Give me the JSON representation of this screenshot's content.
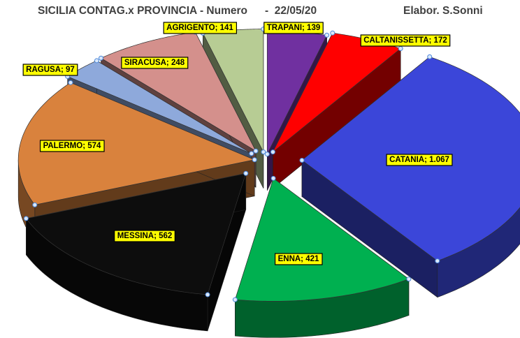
{
  "header": {
    "title": "SICILIA CONTAG.x PROVINCIA - Numero",
    "date": "-  22/05/20",
    "author": "Elabor. S.Sonni"
  },
  "chart_data": {
    "type": "pie",
    "style": "3d-exploded",
    "title": "SICILIA CONTAG.x PROVINCIA - Numero",
    "slices": [
      {
        "name": "TRAPANI",
        "value": 139,
        "label": "TRAPANI; 139",
        "color": "#7030A0"
      },
      {
        "name": "CALTANISSETTA",
        "value": 172,
        "label": "CALTANISSETTA; 172",
        "color": "#FF0000"
      },
      {
        "name": "CATANIA",
        "value": 1067,
        "label": "CATANIA; 1.067",
        "color": "#3B46D9"
      },
      {
        "name": "ENNA",
        "value": 421,
        "label": "ENNA; 421",
        "color": "#00B050"
      },
      {
        "name": "MESSINA",
        "value": 562,
        "label": "MESSINA; 562",
        "color": "#0D0D0D"
      },
      {
        "name": "PALERMO",
        "value": 574,
        "label": "PALERMO; 574",
        "color": "#D9823D"
      },
      {
        "name": "RAGUSA",
        "value": 97,
        "label": "RAGUSA; 97",
        "color": "#8EA9DB"
      },
      {
        "name": "SIRACUSA",
        "value": 248,
        "label": "SIRACUSA; 248",
        "color": "#D4908C"
      },
      {
        "name": "AGRIGENTO",
        "value": 141,
        "label": "AGRIGENTO; 141",
        "color": "#B7CC94"
      }
    ],
    "label_style": {
      "fill": "#FFFF00",
      "border": "#000000"
    }
  }
}
